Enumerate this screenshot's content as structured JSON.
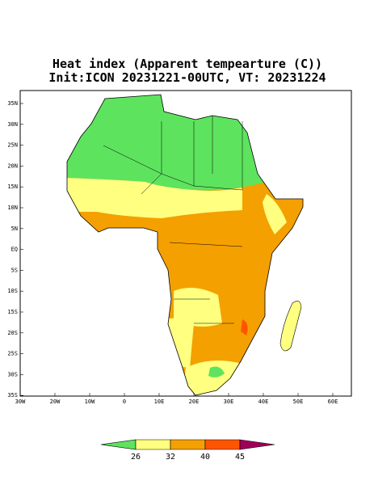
{
  "title": {
    "line1": "Heat index (Apparent tempearture (C))",
    "line2": "Init:ICON 20231221-00UTC, VT: 20231224"
  },
  "map": {
    "lat_labels": [
      "35N",
      "30N",
      "25N",
      "20N",
      "15N",
      "10N",
      "5N",
      "EQ",
      "5S",
      "10S",
      "15S",
      "20S",
      "25S",
      "30S",
      "35S"
    ],
    "lon_labels": [
      "30W",
      "20W",
      "10W",
      "0",
      "10E",
      "20E",
      "30E",
      "40E",
      "50E",
      "60E"
    ]
  },
  "colorbar": {
    "colors": [
      "#5ee35e",
      "#ffff80",
      "#f4a000",
      "#ff5500",
      "#a0005a"
    ],
    "ticks": [
      26,
      32,
      40,
      45
    ]
  }
}
